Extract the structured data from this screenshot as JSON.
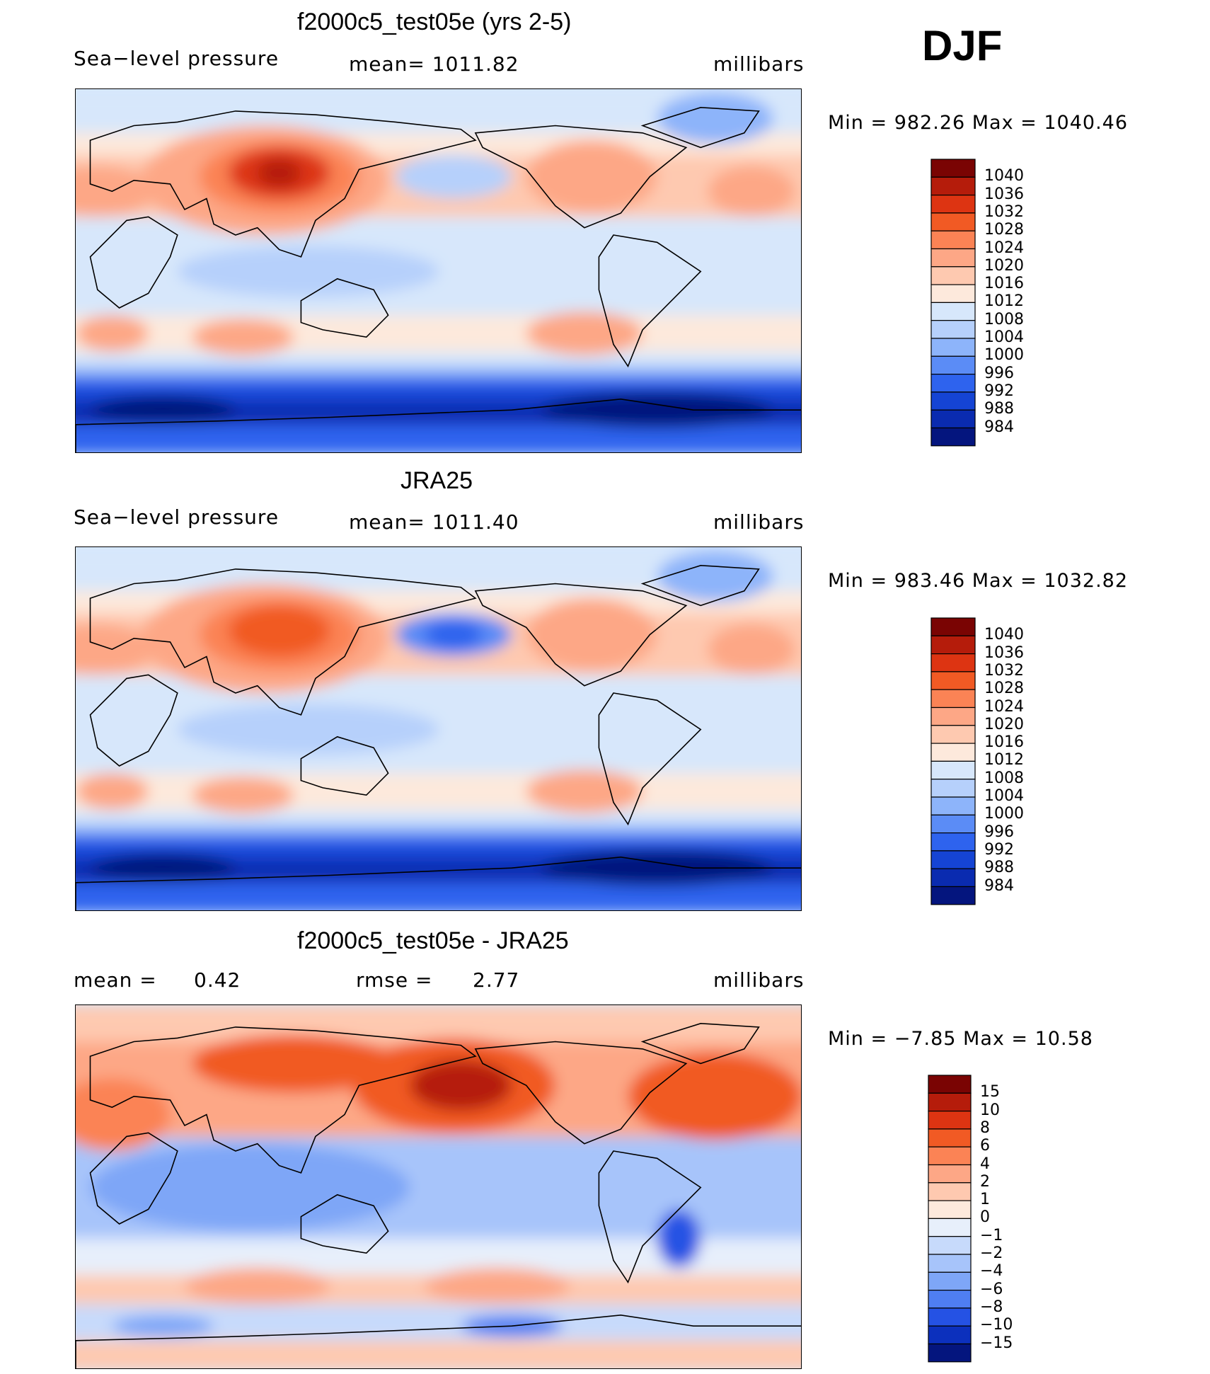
{
  "season": "DJF",
  "panels": [
    {
      "id": "model",
      "title": "f2000c5_test05e (yrs 2-5)",
      "left_label": "Sea−level pressure",
      "center_label": "mean=  1011.82",
      "right_label": "millibars",
      "minmax": "Min  =  982.26  Max  =  1040.46"
    },
    {
      "id": "obs",
      "title": "JRA25",
      "left_label": "Sea−level pressure",
      "center_label": "mean=  1011.40",
      "right_label": "millibars",
      "minmax": "Min  =  983.46  Max  =  1032.82"
    },
    {
      "id": "diff",
      "title": "f2000c5_test05e - JRA25",
      "left_label": "mean  =",
      "left_value": "0.42",
      "center_label": "rmse  =",
      "center_value": "2.77",
      "right_label": "millibars",
      "minmax": "Min  =   −7.85  Max  =    10.58"
    }
  ],
  "chart_data": [
    {
      "type": "heatmap",
      "title": "f2000c5_test05e (yrs 2-5)",
      "variable": "Sea−level pressure",
      "units": "millibars",
      "mean": 1011.82,
      "min": 982.26,
      "max": 1040.46,
      "levels": [
        1040,
        1036,
        1032,
        1028,
        1024,
        1020,
        1016,
        1012,
        1008,
        1004,
        1000,
        996,
        992,
        988,
        984
      ],
      "colors": [
        "#7a0403",
        "#b51c0b",
        "#dd3412",
        "#f15a24",
        "#fb8355",
        "#fda786",
        "#fec9b0",
        "#fde9dc",
        "#d7e7fb",
        "#b6d0fb",
        "#8db4fa",
        "#5b8cf6",
        "#2e63ee",
        "#1544d4",
        "#0a2bb0",
        "#04157e"
      ]
    },
    {
      "type": "heatmap",
      "title": "JRA25",
      "variable": "Sea−level pressure",
      "units": "millibars",
      "mean": 1011.4,
      "min": 983.46,
      "max": 1032.82,
      "levels": [
        1040,
        1036,
        1032,
        1028,
        1024,
        1020,
        1016,
        1012,
        1008,
        1004,
        1000,
        996,
        992,
        988,
        984
      ],
      "colors": [
        "#7a0403",
        "#b51c0b",
        "#dd3412",
        "#f15a24",
        "#fb8355",
        "#fda786",
        "#fec9b0",
        "#fde9dc",
        "#d7e7fb",
        "#b6d0fb",
        "#8db4fa",
        "#5b8cf6",
        "#2e63ee",
        "#1544d4",
        "#0a2bb0",
        "#04157e"
      ]
    },
    {
      "type": "heatmap",
      "title": "f2000c5_test05e - JRA25",
      "units": "millibars",
      "mean": 0.42,
      "rmse": 2.77,
      "min": -7.85,
      "max": 10.58,
      "levels": [
        "15",
        "10",
        "8",
        "6",
        "4",
        "2",
        "1",
        "0",
        "−1",
        "−2",
        "−4",
        "−6",
        "−8",
        "−10",
        "−15"
      ],
      "colors": [
        "#7a0403",
        "#b51c0b",
        "#dd3412",
        "#f15a24",
        "#fb8355",
        "#fda786",
        "#fec9b0",
        "#fde9dc",
        "#e7effb",
        "#c7dafb",
        "#a7c4fa",
        "#7ea6f7",
        "#4f7ef2",
        "#2552e4",
        "#0c30bd",
        "#04157e"
      ]
    }
  ]
}
